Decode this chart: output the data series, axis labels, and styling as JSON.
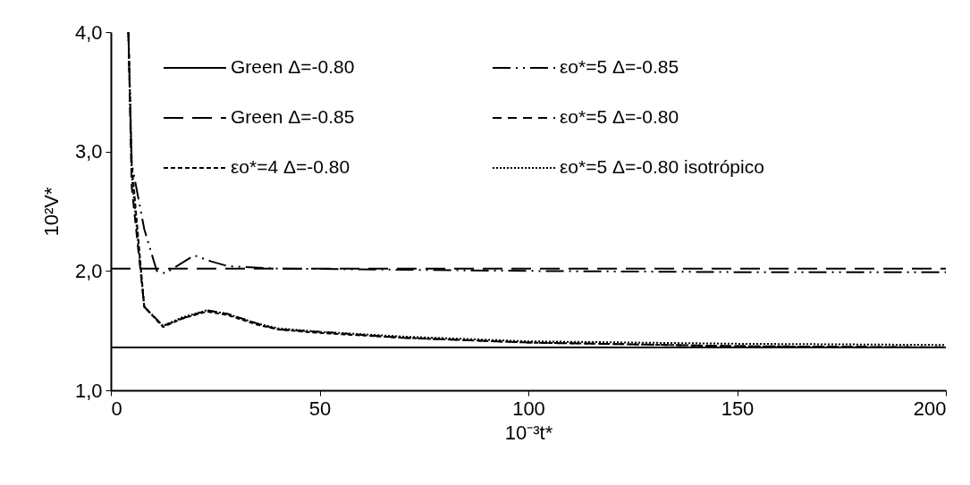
{
  "chart_data": {
    "type": "line",
    "xlabel": "10⁻³t*",
    "ylabel": "10²V*",
    "xlim": [
      0,
      200
    ],
    "xticks": [
      0,
      50,
      100,
      150,
      200
    ],
    "ylim": [
      1,
      4
    ],
    "yticks": [
      {
        "value": 1,
        "label": "1,0"
      },
      {
        "value": 2,
        "label": "2,0"
      },
      {
        "value": 3,
        "label": "3,0"
      },
      {
        "value": 4,
        "label": "4,0"
      }
    ],
    "legend": "top",
    "grid": false,
    "marker": "none",
    "series": [
      {
        "name": "Green Δ=-0.80",
        "color": "#000000",
        "line_style": "solid",
        "x": [
          0,
          200
        ],
        "values": [
          1.36,
          1.36
        ]
      },
      {
        "name": "Green Δ=-0.85",
        "color": "#000000",
        "line_style": "longdash",
        "x": [
          0,
          200
        ],
        "values": [
          2.02,
          2.02
        ]
      },
      {
        "name": "εo*=4  Δ=-0.80",
        "color": "#000000",
        "line_style": "dotted",
        "x": [
          4.2,
          5,
          8,
          12.5,
          17,
          23,
          28,
          35,
          40,
          50,
          70,
          100,
          150,
          200
        ],
        "values": [
          4.0,
          2.9,
          1.7,
          1.53,
          1.6,
          1.66,
          1.63,
          1.55,
          1.51,
          1.48,
          1.44,
          1.4,
          1.37,
          1.36
        ]
      },
      {
        "name": "εo*=5  Δ=-0.85",
        "color": "#000000",
        "line_style": "dashdot",
        "x": [
          4.2,
          5,
          8,
          11,
          13,
          20,
          24,
          28,
          40,
          100,
          150,
          200
        ],
        "values": [
          4.0,
          2.9,
          2.35,
          2.0,
          1.98,
          2.13,
          2.08,
          2.04,
          2.02,
          2.0,
          1.99,
          1.99
        ]
      },
      {
        "name": "εo*=5  Δ=-0.80",
        "color": "#000000",
        "line_style": "dashed",
        "x": [
          4.2,
          5,
          8,
          12.5,
          17,
          23,
          28,
          35,
          40,
          50,
          70,
          100,
          150,
          200
        ],
        "values": [
          4.0,
          2.7,
          1.7,
          1.54,
          1.6,
          1.67,
          1.64,
          1.56,
          1.51,
          1.49,
          1.44,
          1.4,
          1.37,
          1.36
        ]
      },
      {
        "name": "εo*=5  Δ=-0.80 isotrópico",
        "color": "#000000",
        "line_style": "finedotted",
        "x": [
          4.2,
          5,
          8,
          12.5,
          17,
          23,
          28,
          35,
          40,
          50,
          70,
          100,
          150,
          200
        ],
        "values": [
          4.0,
          2.8,
          1.7,
          1.54,
          1.61,
          1.67,
          1.64,
          1.56,
          1.52,
          1.49,
          1.45,
          1.41,
          1.39,
          1.38
        ]
      }
    ]
  }
}
